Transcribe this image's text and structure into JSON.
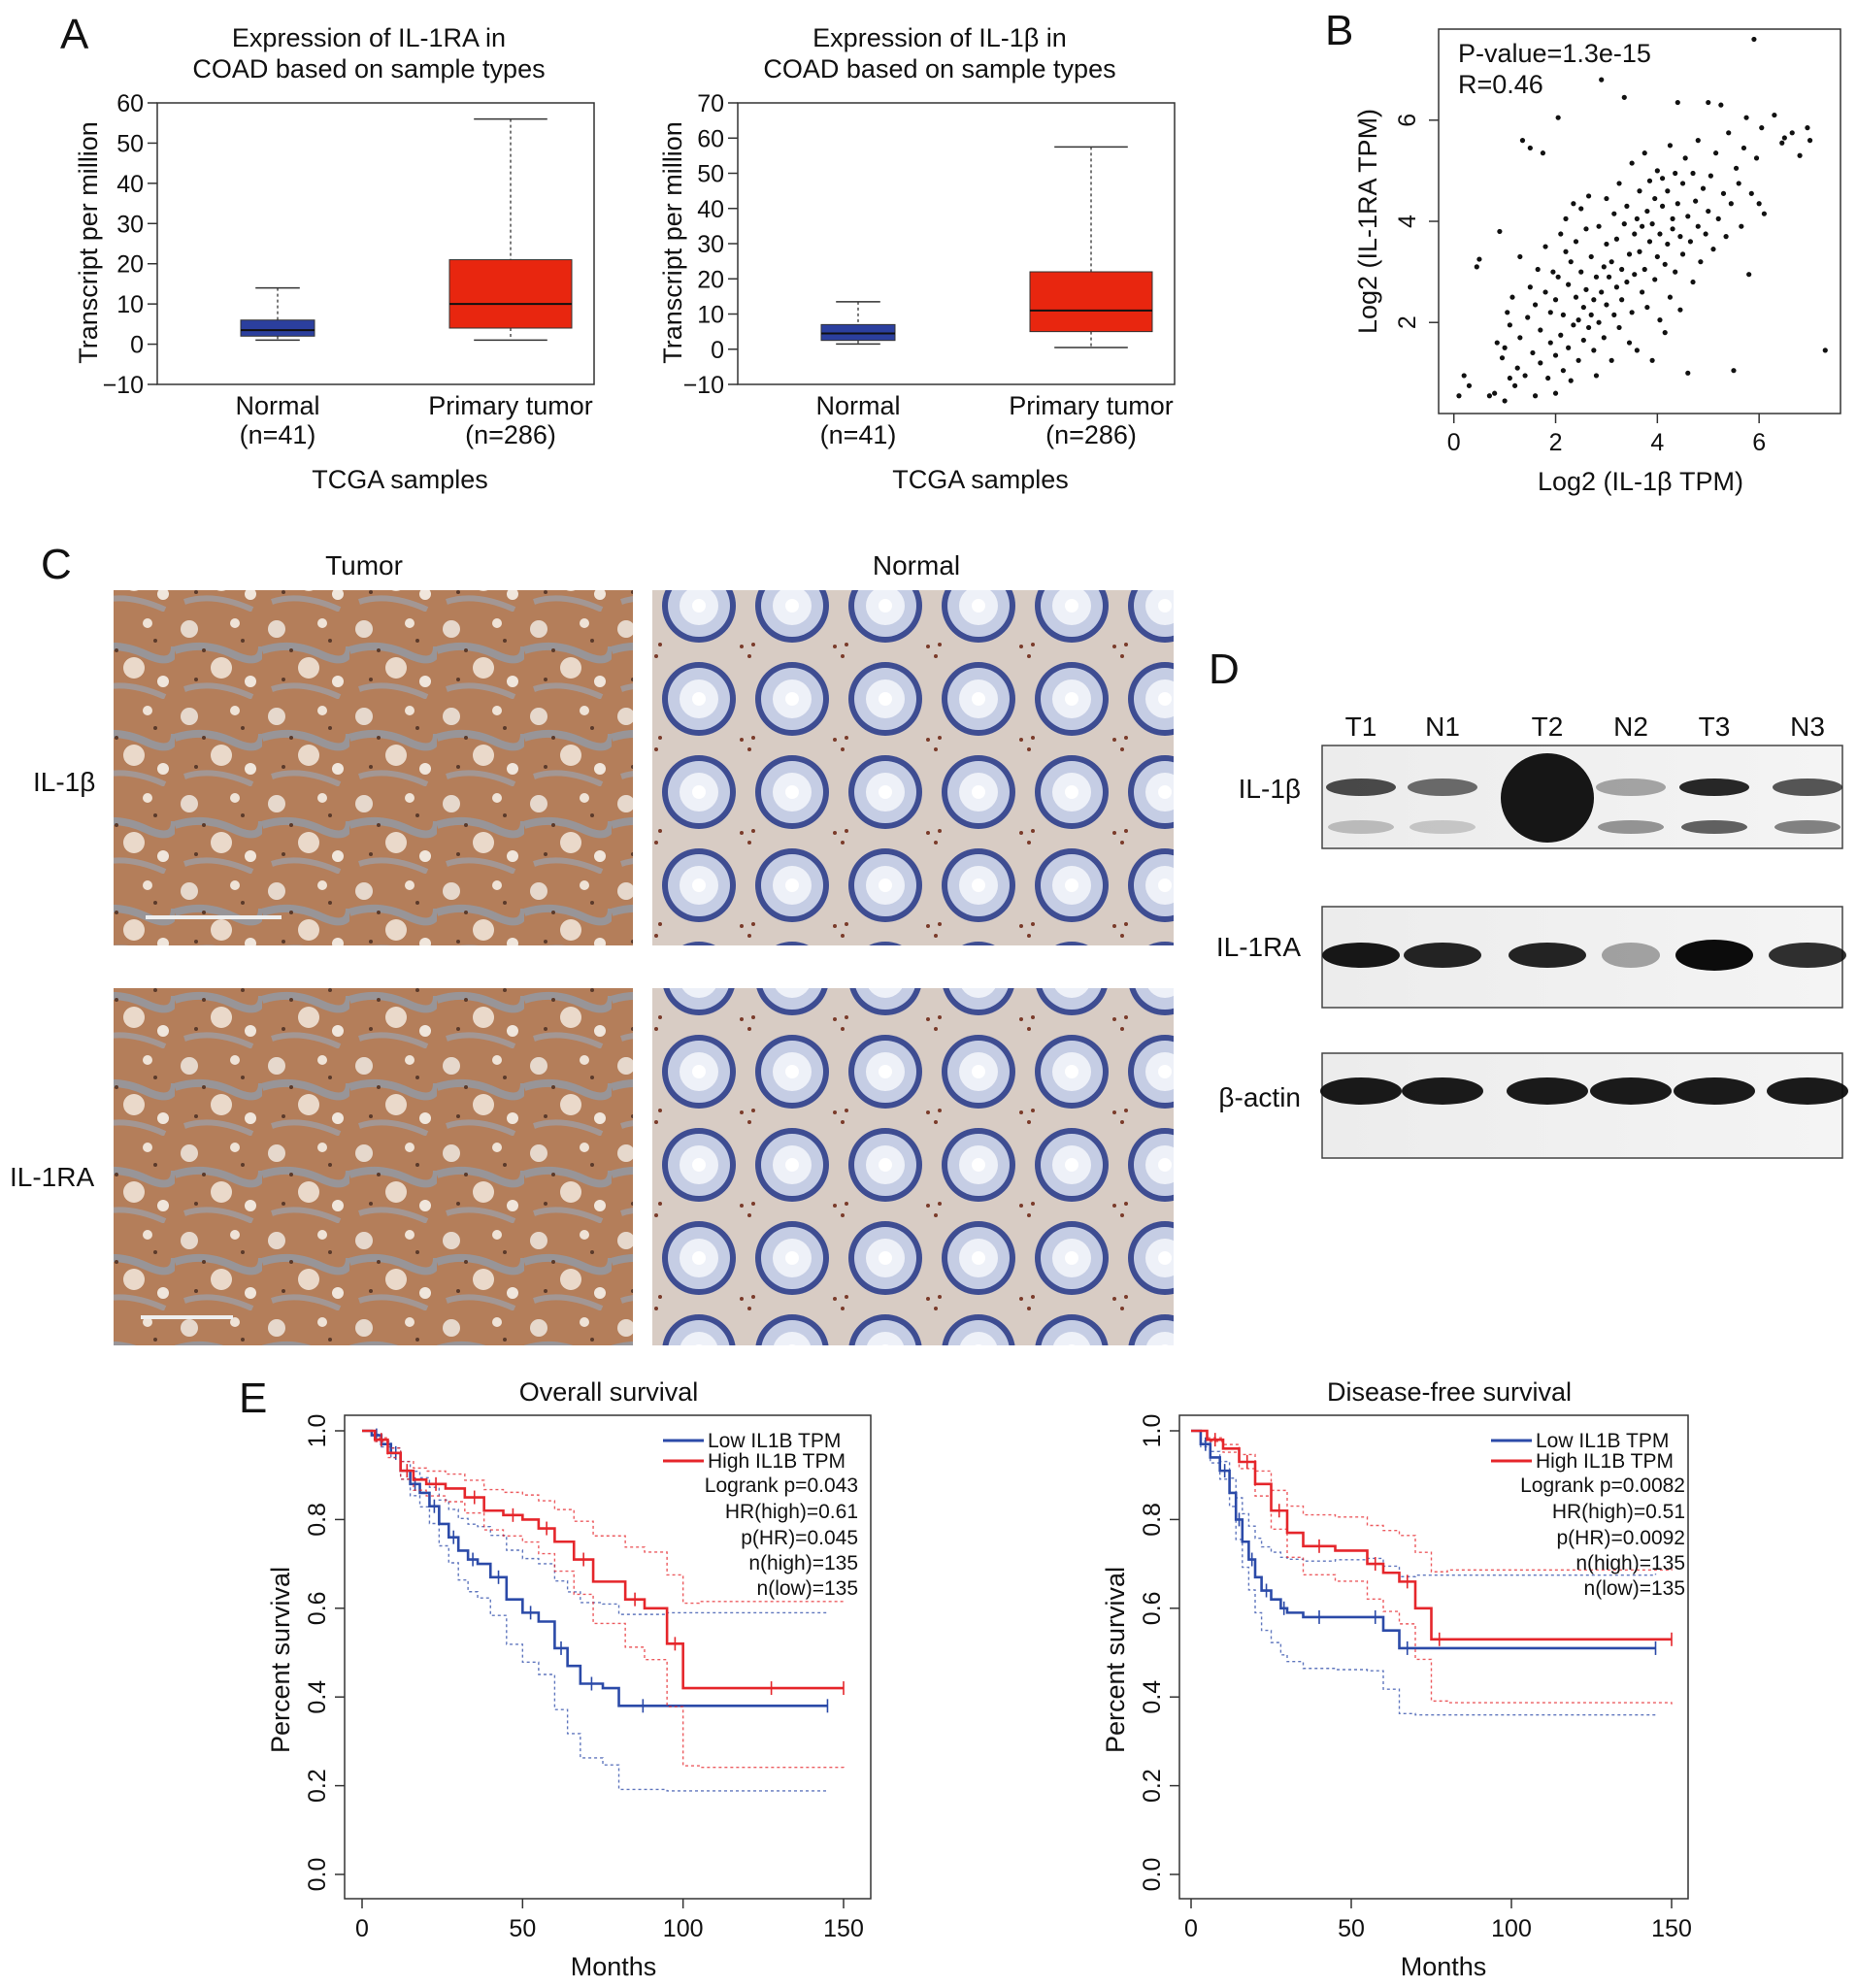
{
  "panels": {
    "A": "A",
    "B": "B",
    "C": "C",
    "D": "D",
    "E": "E"
  },
  "panel_a_left": {
    "title_line1": "Expression of IL-1RA in",
    "title_line2": "COAD based on sample types",
    "ylabel": "Transcript per million",
    "xlabel": "TCGA samples",
    "yticks": [
      "60",
      "50",
      "40",
      "30",
      "20",
      "10",
      "0",
      "−10"
    ],
    "groups": [
      {
        "name": "Normal",
        "n": "(n=41)"
      },
      {
        "name": "Primary tumor",
        "n": "(n=286)"
      }
    ]
  },
  "panel_a_right": {
    "title_line1": "Expression of IL-1β in",
    "title_line2": "COAD based on sample types",
    "ylabel": "Transcript per million",
    "xlabel": "TCGA samples",
    "yticks": [
      "70",
      "60",
      "50",
      "40",
      "30",
      "20",
      "10",
      "0",
      "−10"
    ],
    "groups": [
      {
        "name": "Normal",
        "n": "(n=41)"
      },
      {
        "name": "Primary tumor",
        "n": "(n=286)"
      }
    ]
  },
  "panel_b": {
    "pvalue": "P-value=1.3e-15",
    "r": "R=0.46",
    "xlabel": "Log2 (IL-1β TPM)",
    "ylabel": "Log2 (IL-1RA TPM)",
    "xticks": [
      "0",
      "2",
      "4",
      "6"
    ],
    "yticks": [
      "2",
      "4",
      "6"
    ]
  },
  "panel_c": {
    "col_tumor": "Tumor",
    "col_normal": "Normal",
    "row_il1b": "IL-1β",
    "row_il1ra": "IL-1RA"
  },
  "panel_d": {
    "lanes": [
      "T1",
      "N1",
      "T2",
      "N2",
      "T3",
      "N3"
    ],
    "blots": [
      "IL-1β",
      "IL-1RA",
      "β-actin"
    ]
  },
  "panel_e_left": {
    "title": "Overall survival",
    "legend_low": "Low IL1B TPM",
    "legend_high": "High IL1B TPM",
    "stats": [
      "Logrank p=0.043",
      "HR(high)=0.61",
      "p(HR)=0.045",
      "n(high)=135",
      "n(low)=135"
    ],
    "xlabel": "Months",
    "ylabel": "Percent survival",
    "xticks": [
      "0",
      "50",
      "100",
      "150"
    ],
    "yticks": [
      "0.0",
      "0.2",
      "0.4",
      "0.6",
      "0.8",
      "1.0"
    ]
  },
  "panel_e_right": {
    "title": "Disease-free survival",
    "legend_low": "Low IL1B TPM",
    "legend_high": "High IL1B TPM",
    "stats": [
      "Logrank p=0.0082",
      "HR(high)=0.51",
      "p(HR)=0.0092",
      "n(high)=135",
      "n(low)=135"
    ],
    "xlabel": "Months",
    "ylabel": "Percent survival",
    "xticks": [
      "0",
      "50",
      "100",
      "150"
    ],
    "yticks": [
      "0.0",
      "0.2",
      "0.4",
      "0.6",
      "0.8",
      "1.0"
    ]
  },
  "colors": {
    "normal_box": "#2b3f9e",
    "tumor_box": "#e8260f",
    "low_curve": "#2b4aa8",
    "high_curve": "#e5262b"
  },
  "chart_data": [
    {
      "type": "box",
      "categories": [
        "Normal",
        "Primary tumor"
      ],
      "ylim": [
        -10,
        60
      ],
      "boxes": [
        {
          "min": 1,
          "q1": 2,
          "median": 3.5,
          "q3": 6,
          "max": 14
        },
        {
          "min": 1,
          "q1": 4,
          "median": 10,
          "q3": 21,
          "max": 56
        }
      ]
    },
    {
      "type": "box",
      "categories": [
        "Normal",
        "Primary tumor"
      ],
      "ylim": [
        -10,
        70
      ],
      "boxes": [
        {
          "min": 1.5,
          "q1": 2.5,
          "median": 4.5,
          "q3": 7,
          "max": 13.5
        },
        {
          "min": 0.5,
          "q1": 5,
          "median": 11,
          "q3": 22,
          "max": 57.5
        }
      ]
    },
    {
      "type": "scatter",
      "xlim": [
        -0.3,
        7.6
      ],
      "ylim": [
        0.2,
        7.8
      ],
      "points": [
        [
          0.1,
          0.55
        ],
        [
          0.2,
          0.95
        ],
        [
          0.3,
          0.75
        ],
        [
          0.45,
          3.1
        ],
        [
          0.5,
          3.25
        ],
        [
          0.7,
          0.55
        ],
        [
          0.8,
          0.6
        ],
        [
          0.85,
          1.6
        ],
        [
          0.9,
          3.8
        ],
        [
          0.95,
          1.3
        ],
        [
          1.0,
          0.45
        ],
        [
          1.0,
          1.5
        ],
        [
          1.05,
          2.2
        ],
        [
          1.1,
          0.9
        ],
        [
          1.1,
          1.95
        ],
        [
          1.15,
          2.5
        ],
        [
          1.2,
          0.75
        ],
        [
          1.25,
          1.1
        ],
        [
          1.3,
          1.7
        ],
        [
          1.3,
          3.3
        ],
        [
          1.35,
          5.6
        ],
        [
          1.4,
          0.95
        ],
        [
          1.45,
          2.1
        ],
        [
          1.5,
          2.7
        ],
        [
          1.5,
          5.45
        ],
        [
          1.55,
          1.4
        ],
        [
          1.6,
          0.55
        ],
        [
          1.6,
          2.35
        ],
        [
          1.65,
          3.05
        ],
        [
          1.7,
          1.2
        ],
        [
          1.7,
          1.85
        ],
        [
          1.75,
          5.35
        ],
        [
          1.8,
          2.6
        ],
        [
          1.8,
          3.5
        ],
        [
          1.85,
          0.9
        ],
        [
          1.9,
          1.6
        ],
        [
          1.9,
          2.2
        ],
        [
          1.95,
          3.0
        ],
        [
          2.0,
          0.6
        ],
        [
          2.0,
          1.35
        ],
        [
          2.0,
          2.45
        ],
        [
          2.05,
          2.9
        ],
        [
          2.05,
          6.05
        ],
        [
          2.1,
          1.75
        ],
        [
          2.1,
          3.75
        ],
        [
          2.15,
          1.05
        ],
        [
          2.15,
          2.15
        ],
        [
          2.2,
          3.4
        ],
        [
          2.2,
          4.05
        ],
        [
          2.25,
          1.5
        ],
        [
          2.25,
          2.75
        ],
        [
          2.3,
          0.85
        ],
        [
          2.3,
          3.2
        ],
        [
          2.35,
          1.95
        ],
        [
          2.35,
          4.35
        ],
        [
          2.4,
          2.5
        ],
        [
          2.4,
          3.6
        ],
        [
          2.45,
          1.25
        ],
        [
          2.45,
          2.05
        ],
        [
          2.5,
          3.0
        ],
        [
          2.5,
          4.25
        ],
        [
          2.55,
          1.65
        ],
        [
          2.55,
          2.3
        ],
        [
          2.6,
          2.65
        ],
        [
          2.6,
          3.85
        ],
        [
          2.65,
          1.9
        ],
        [
          2.65,
          4.5
        ],
        [
          2.7,
          2.15
        ],
        [
          2.7,
          3.3
        ],
        [
          2.75,
          1.45
        ],
        [
          2.75,
          2.45
        ],
        [
          2.8,
          0.95
        ],
        [
          2.8,
          2.9
        ],
        [
          2.85,
          3.9
        ],
        [
          2.85,
          2.0
        ],
        [
          2.9,
          2.6
        ],
        [
          2.9,
          6.8
        ],
        [
          2.95,
          3.1
        ],
        [
          2.95,
          1.7
        ],
        [
          3.0,
          2.35
        ],
        [
          3.0,
          3.55
        ],
        [
          3.0,
          4.45
        ],
        [
          3.05,
          2.9
        ],
        [
          3.1,
          1.25
        ],
        [
          3.1,
          3.2
        ],
        [
          3.15,
          2.15
        ],
        [
          3.15,
          4.15
        ],
        [
          3.2,
          2.7
        ],
        [
          3.2,
          3.65
        ],
        [
          3.25,
          1.9
        ],
        [
          3.25,
          4.75
        ],
        [
          3.3,
          3.05
        ],
        [
          3.3,
          2.45
        ],
        [
          3.35,
          3.95
        ],
        [
          3.35,
          6.45
        ],
        [
          3.4,
          2.8
        ],
        [
          3.4,
          4.3
        ],
        [
          3.45,
          1.6
        ],
        [
          3.45,
          3.35
        ],
        [
          3.5,
          2.2
        ],
        [
          3.5,
          5.15
        ],
        [
          3.55,
          3.75
        ],
        [
          3.55,
          2.95
        ],
        [
          3.6,
          4.05
        ],
        [
          3.6,
          1.45
        ],
        [
          3.65,
          3.4
        ],
        [
          3.65,
          4.6
        ],
        [
          3.7,
          2.6
        ],
        [
          3.7,
          3.9
        ],
        [
          3.75,
          5.35
        ],
        [
          3.75,
          3.05
        ],
        [
          3.8,
          4.2
        ],
        [
          3.8,
          2.3
        ],
        [
          3.85,
          3.6
        ],
        [
          3.85,
          4.8
        ],
        [
          3.9,
          1.25
        ],
        [
          3.9,
          3.95
        ],
        [
          3.95,
          2.85
        ],
        [
          3.95,
          4.45
        ],
        [
          4.0,
          3.3
        ],
        [
          4.0,
          5.0
        ],
        [
          4.05,
          2.05
        ],
        [
          4.05,
          3.75
        ],
        [
          4.1,
          4.3
        ],
        [
          4.1,
          4.85
        ],
        [
          4.15,
          3.15
        ],
        [
          4.15,
          1.8
        ],
        [
          4.2,
          4.6
        ],
        [
          4.2,
          3.55
        ],
        [
          4.25,
          5.5
        ],
        [
          4.25,
          2.5
        ],
        [
          4.3,
          4.05
        ],
        [
          4.3,
          3.85
        ],
        [
          4.35,
          4.95
        ],
        [
          4.35,
          3.0
        ],
        [
          4.4,
          4.35
        ],
        [
          4.4,
          6.35
        ],
        [
          4.45,
          3.7
        ],
        [
          4.45,
          2.25
        ],
        [
          4.5,
          4.75
        ],
        [
          4.5,
          3.35
        ],
        [
          4.55,
          5.25
        ],
        [
          4.6,
          4.1
        ],
        [
          4.6,
          1.0
        ],
        [
          4.65,
          3.6
        ],
        [
          4.7,
          4.95
        ],
        [
          4.7,
          2.8
        ],
        [
          4.75,
          4.4
        ],
        [
          4.8,
          3.9
        ],
        [
          4.8,
          5.6
        ],
        [
          4.85,
          3.2
        ],
        [
          4.9,
          4.65
        ],
        [
          4.95,
          3.75
        ],
        [
          5.0,
          4.2
        ],
        [
          5.0,
          6.35
        ],
        [
          5.05,
          4.9
        ],
        [
          5.1,
          3.45
        ],
        [
          5.15,
          5.35
        ],
        [
          5.2,
          4.05
        ],
        [
          5.25,
          6.3
        ],
        [
          5.3,
          4.55
        ],
        [
          5.35,
          3.7
        ],
        [
          5.4,
          5.75
        ],
        [
          5.45,
          4.35
        ],
        [
          5.5,
          1.05
        ],
        [
          5.55,
          5.05
        ],
        [
          5.6,
          4.75
        ],
        [
          5.65,
          3.9
        ],
        [
          5.7,
          5.45
        ],
        [
          5.75,
          6.05
        ],
        [
          5.8,
          2.95
        ],
        [
          5.85,
          4.55
        ],
        [
          5.9,
          7.6
        ],
        [
          5.95,
          5.25
        ],
        [
          6.0,
          4.35
        ],
        [
          6.05,
          5.85
        ],
        [
          6.1,
          4.15
        ],
        [
          6.3,
          6.1
        ],
        [
          6.45,
          5.55
        ],
        [
          6.5,
          5.65
        ],
        [
          6.65,
          5.75
        ],
        [
          6.8,
          5.3
        ],
        [
          6.95,
          5.85
        ],
        [
          7.0,
          5.6
        ],
        [
          7.3,
          1.45
        ]
      ]
    },
    {
      "type": "line",
      "xlim": [
        0,
        150
      ],
      "ylim": [
        0,
        1.0
      ],
      "series": [
        {
          "name": "Low IL1B TPM",
          "x": [
            0,
            3,
            6,
            9,
            12,
            15,
            18,
            21,
            24,
            27,
            30,
            33,
            36,
            40,
            45,
            50,
            55,
            60,
            64,
            68,
            75,
            80,
            95,
            145
          ],
          "y": [
            1.0,
            0.99,
            0.97,
            0.95,
            0.91,
            0.88,
            0.86,
            0.83,
            0.79,
            0.76,
            0.73,
            0.71,
            0.7,
            0.67,
            0.62,
            0.59,
            0.57,
            0.51,
            0.47,
            0.43,
            0.42,
            0.38,
            0.38,
            0.38
          ]
        },
        {
          "name": "High IL1B TPM",
          "x": [
            0,
            4,
            8,
            12,
            16,
            20,
            26,
            32,
            38,
            44,
            50,
            55,
            60,
            66,
            72,
            82,
            88,
            95,
            100,
            105,
            150
          ],
          "y": [
            1.0,
            0.98,
            0.95,
            0.91,
            0.89,
            0.88,
            0.87,
            0.85,
            0.82,
            0.81,
            0.8,
            0.78,
            0.75,
            0.71,
            0.66,
            0.62,
            0.6,
            0.52,
            0.42,
            0.42,
            0.42
          ]
        }
      ]
    },
    {
      "type": "line",
      "xlim": [
        0,
        150
      ],
      "ylim": [
        0,
        1.0
      ],
      "series": [
        {
          "name": "Low IL1B TPM",
          "x": [
            0,
            3,
            6,
            9,
            12,
            14,
            16,
            18,
            20,
            22,
            25,
            28,
            30,
            35,
            45,
            55,
            60,
            65,
            70,
            145
          ],
          "y": [
            1.0,
            0.97,
            0.94,
            0.91,
            0.86,
            0.8,
            0.75,
            0.71,
            0.67,
            0.64,
            0.62,
            0.6,
            0.59,
            0.58,
            0.58,
            0.58,
            0.55,
            0.51,
            0.51,
            0.51
          ]
        },
        {
          "name": "High IL1B TPM",
          "x": [
            0,
            5,
            10,
            15,
            20,
            25,
            30,
            35,
            45,
            55,
            60,
            65,
            70,
            75,
            80,
            150
          ],
          "y": [
            1.0,
            0.98,
            0.96,
            0.93,
            0.88,
            0.82,
            0.77,
            0.74,
            0.73,
            0.7,
            0.68,
            0.66,
            0.6,
            0.53,
            0.53,
            0.53
          ]
        }
      ]
    }
  ]
}
